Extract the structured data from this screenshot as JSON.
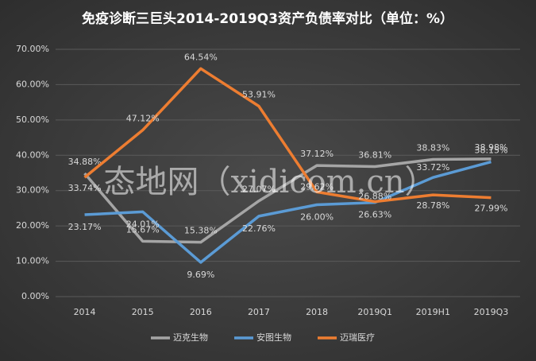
{
  "chart_data": {
    "type": "line",
    "title": "免疫诊断三巨头2014-2019Q3资产负债率对比（单位：%）",
    "watermark": "态地网（xidicom.cn）",
    "categories": [
      "2014",
      "2015",
      "2016",
      "2017",
      "2018",
      "2019Q1",
      "2019H1",
      "2019Q3"
    ],
    "series": [
      {
        "name": "迈克生物",
        "color": "#a5a5a5",
        "values": [
          34.88,
          15.67,
          15.38,
          27.07,
          37.12,
          36.81,
          38.83,
          38.98
        ],
        "value_labels": [
          "34.88%",
          "15.67%",
          "15.38%",
          "27.07%",
          "37.12%",
          "36.81%",
          "38.83%",
          "38.98%"
        ]
      },
      {
        "name": "安图生物",
        "color": "#5b9bd5",
        "values": [
          23.17,
          24.01,
          9.69,
          22.76,
          26.0,
          26.63,
          33.72,
          38.15
        ],
        "value_labels": [
          "23.17%",
          "24.01%",
          "9.69%",
          "22.76%",
          "26.00%",
          "26.63%",
          "33.72%",
          "38.15%"
        ]
      },
      {
        "name": "迈瑞医疗",
        "color": "#ed7d31",
        "values": [
          33.74,
          47.12,
          64.54,
          53.91,
          29.62,
          26.88,
          28.78,
          27.99
        ],
        "value_labels": [
          "33.74%",
          "47.12%",
          "64.54%",
          "53.91%",
          "29.62%",
          "26.88%",
          "28.78%",
          "27.99%"
        ]
      }
    ],
    "ylim": [
      0,
      70
    ],
    "yticks": [
      {
        "value": 0,
        "label": "0.00%"
      },
      {
        "value": 10,
        "label": "10.00%"
      },
      {
        "value": 20,
        "label": "20.00%"
      },
      {
        "value": 30,
        "label": "30.00%"
      },
      {
        "value": 40,
        "label": "40.00%"
      },
      {
        "value": 50,
        "label": "50.00%"
      },
      {
        "value": 60,
        "label": "60.00%"
      },
      {
        "value": 70,
        "label": "70.00%"
      }
    ],
    "grid": true,
    "legend": "bottom"
  }
}
